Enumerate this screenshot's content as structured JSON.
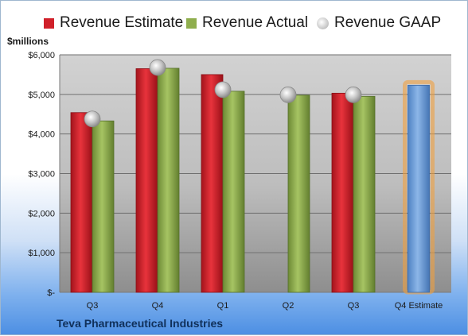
{
  "chart_data": {
    "type": "bar",
    "unit_label": "$millions",
    "categories": [
      "Q3",
      "Q4",
      "Q1",
      "Q2",
      "Q3",
      "Q4 Estimate"
    ],
    "series": [
      {
        "name": "Revenue Estimate",
        "color": "#d0202a",
        "values": [
          4540,
          5650,
          5500,
          null,
          5030,
          null
        ]
      },
      {
        "name": "Revenue Actual",
        "color": "#8fae4d",
        "values": [
          4330,
          5660,
          5080,
          4980,
          4950,
          null
        ]
      },
      {
        "name": "Revenue GAAP",
        "color": "#b8b8b8",
        "values": [
          4380,
          5680,
          5120,
          4990,
          4990,
          null
        ]
      }
    ],
    "estimate_bar": {
      "category": "Q4 Estimate",
      "value": 5230,
      "color": "#6f9fd8",
      "glow_color": "#f0a040"
    },
    "ylim": [
      0,
      6000
    ],
    "y_ticks": [
      0,
      1000,
      2000,
      3000,
      4000,
      5000,
      6000
    ],
    "y_tick_labels": [
      "$-",
      "$1,000",
      "$2,000",
      "$3,000",
      "$4,000",
      "$5,000",
      "$6,000"
    ],
    "grid": true,
    "legend_position": "top",
    "footer": "Teva Pharmaceutical Industries"
  }
}
